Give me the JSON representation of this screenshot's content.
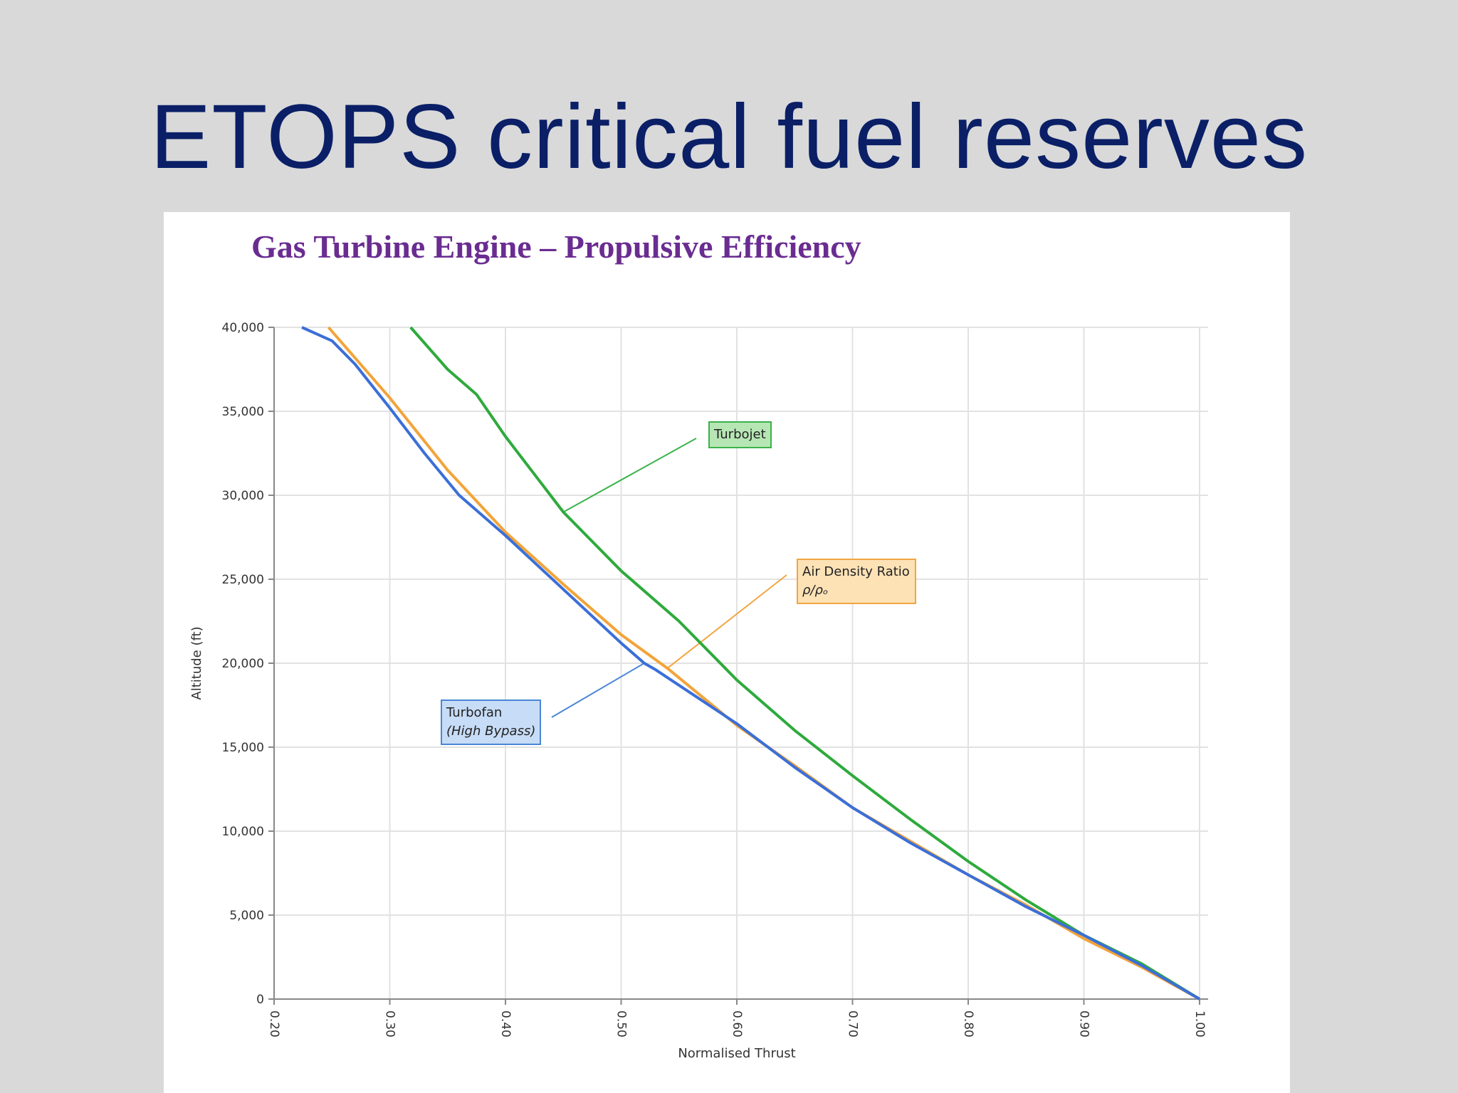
{
  "slide": {
    "title": "ETOPS critical fuel reserves"
  },
  "chart_data": {
    "type": "line",
    "title": "Gas Turbine Engine – Propulsive Efficiency",
    "xlabel": "Normalised Thrust",
    "ylabel": "Altitude (ft)",
    "xlim": [
      0.2,
      1.0
    ],
    "ylim": [
      0,
      40000
    ],
    "x_ticks": [
      "0.20",
      "0.30",
      "0.40",
      "0.50",
      "0.60",
      "0.70",
      "0.80",
      "0.90",
      "1.00"
    ],
    "y_ticks": [
      "0",
      "5,000",
      "10,000",
      "15,000",
      "20,000",
      "25,000",
      "30,000",
      "35,000",
      "40,000"
    ],
    "grid": true,
    "series": [
      {
        "name": "Turbojet",
        "color": "#2eaa3c",
        "x": [
          0.318,
          0.35,
          0.375,
          0.4,
          0.45,
          0.5,
          0.55,
          0.6,
          0.65,
          0.7,
          0.75,
          0.8,
          0.85,
          0.9,
          0.95,
          1.0
        ],
        "y": [
          40000,
          37500,
          36000,
          33500,
          29000,
          25500,
          22500,
          19000,
          16000,
          13300,
          10700,
          8200,
          5900,
          3800,
          2100,
          0
        ]
      },
      {
        "name": "Air Density Ratio ρ/ρ₀",
        "color": "#f2a43a",
        "x": [
          0.247,
          0.3,
          0.35,
          0.4,
          0.45,
          0.5,
          0.54,
          0.6,
          0.65,
          0.7,
          0.75,
          0.8,
          0.85,
          0.9,
          0.95,
          1.0
        ],
        "y": [
          40000,
          35800,
          31500,
          27800,
          24700,
          21700,
          19700,
          16300,
          13900,
          11400,
          9400,
          7400,
          5600,
          3600,
          1900,
          0
        ]
      },
      {
        "name": "Turbofan (High Bypass)",
        "color": "#3b6fd8",
        "x": [
          0.224,
          0.25,
          0.27,
          0.3,
          0.33,
          0.36,
          0.4,
          0.45,
          0.5,
          0.52,
          0.53,
          0.6,
          0.65,
          0.7,
          0.75,
          0.8,
          0.85,
          0.9,
          0.95,
          1.0
        ],
        "y": [
          40000,
          39200,
          37800,
          35200,
          32500,
          30000,
          27600,
          24400,
          21200,
          20000,
          19600,
          16400,
          13800,
          11400,
          9300,
          7400,
          5500,
          3800,
          2000,
          0
        ]
      }
    ],
    "annotations": [
      {
        "id": "turbojet",
        "label": "Turbojet"
      },
      {
        "id": "density",
        "label": "Air Density Ratio",
        "symbol": "ρ/ρₒ"
      },
      {
        "id": "turbofan",
        "label": "Turbofan",
        "sublabel": "(High Bypass)"
      }
    ]
  }
}
